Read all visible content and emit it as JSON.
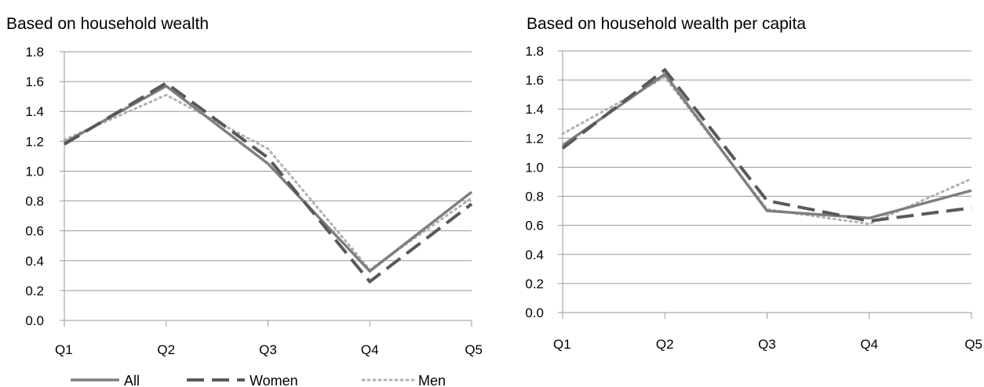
{
  "chart_data": [
    {
      "type": "line",
      "title": "Based on household wealth",
      "xlabel": "",
      "ylabel": "",
      "categories": [
        "Q1",
        "Q2",
        "Q3",
        "Q4",
        "Q5"
      ],
      "ylim": [
        0,
        1.8
      ],
      "yticks": [
        "0.0",
        "0.2",
        "0.4",
        "0.6",
        "0.8",
        "1.0",
        "1.2",
        "1.4",
        "1.6",
        "1.8"
      ],
      "grid": "horizontal",
      "series": [
        {
          "name": "All",
          "values": [
            1.19,
            1.57,
            1.05,
            0.33,
            0.86
          ],
          "color": "#7f7f7f",
          "style": "solid"
        },
        {
          "name": "Women",
          "values": [
            1.18,
            1.59,
            1.09,
            0.26,
            0.78
          ],
          "color": "#595959",
          "style": "dashed"
        },
        {
          "name": "Men",
          "values": [
            1.21,
            1.51,
            1.15,
            0.34,
            0.82
          ],
          "color": "#b0b0b0",
          "style": "dotted"
        }
      ]
    },
    {
      "type": "line",
      "title": "Based on household wealth per capita",
      "xlabel": "",
      "ylabel": "",
      "categories": [
        "Q1",
        "Q2",
        "Q3",
        "Q4",
        "Q5"
      ],
      "ylim": [
        0,
        1.8
      ],
      "yticks": [
        "0.0",
        "0.2",
        "0.4",
        "0.6",
        "0.8",
        "1.0",
        "1.2",
        "1.4",
        "1.6",
        "1.8"
      ],
      "grid": "horizontal",
      "series": [
        {
          "name": "All",
          "values": [
            1.15,
            1.64,
            0.7,
            0.65,
            0.84
          ],
          "color": "#7f7f7f",
          "style": "solid"
        },
        {
          "name": "Women",
          "values": [
            1.13,
            1.67,
            0.77,
            0.63,
            0.72
          ],
          "color": "#595959",
          "style": "dashed"
        },
        {
          "name": "Men",
          "values": [
            1.23,
            1.62,
            0.71,
            0.61,
            0.92
          ],
          "color": "#b0b0b0",
          "style": "dotted"
        }
      ]
    }
  ],
  "legend": {
    "placement": "bottom-left",
    "items": [
      "All",
      "Women",
      "Men"
    ]
  }
}
